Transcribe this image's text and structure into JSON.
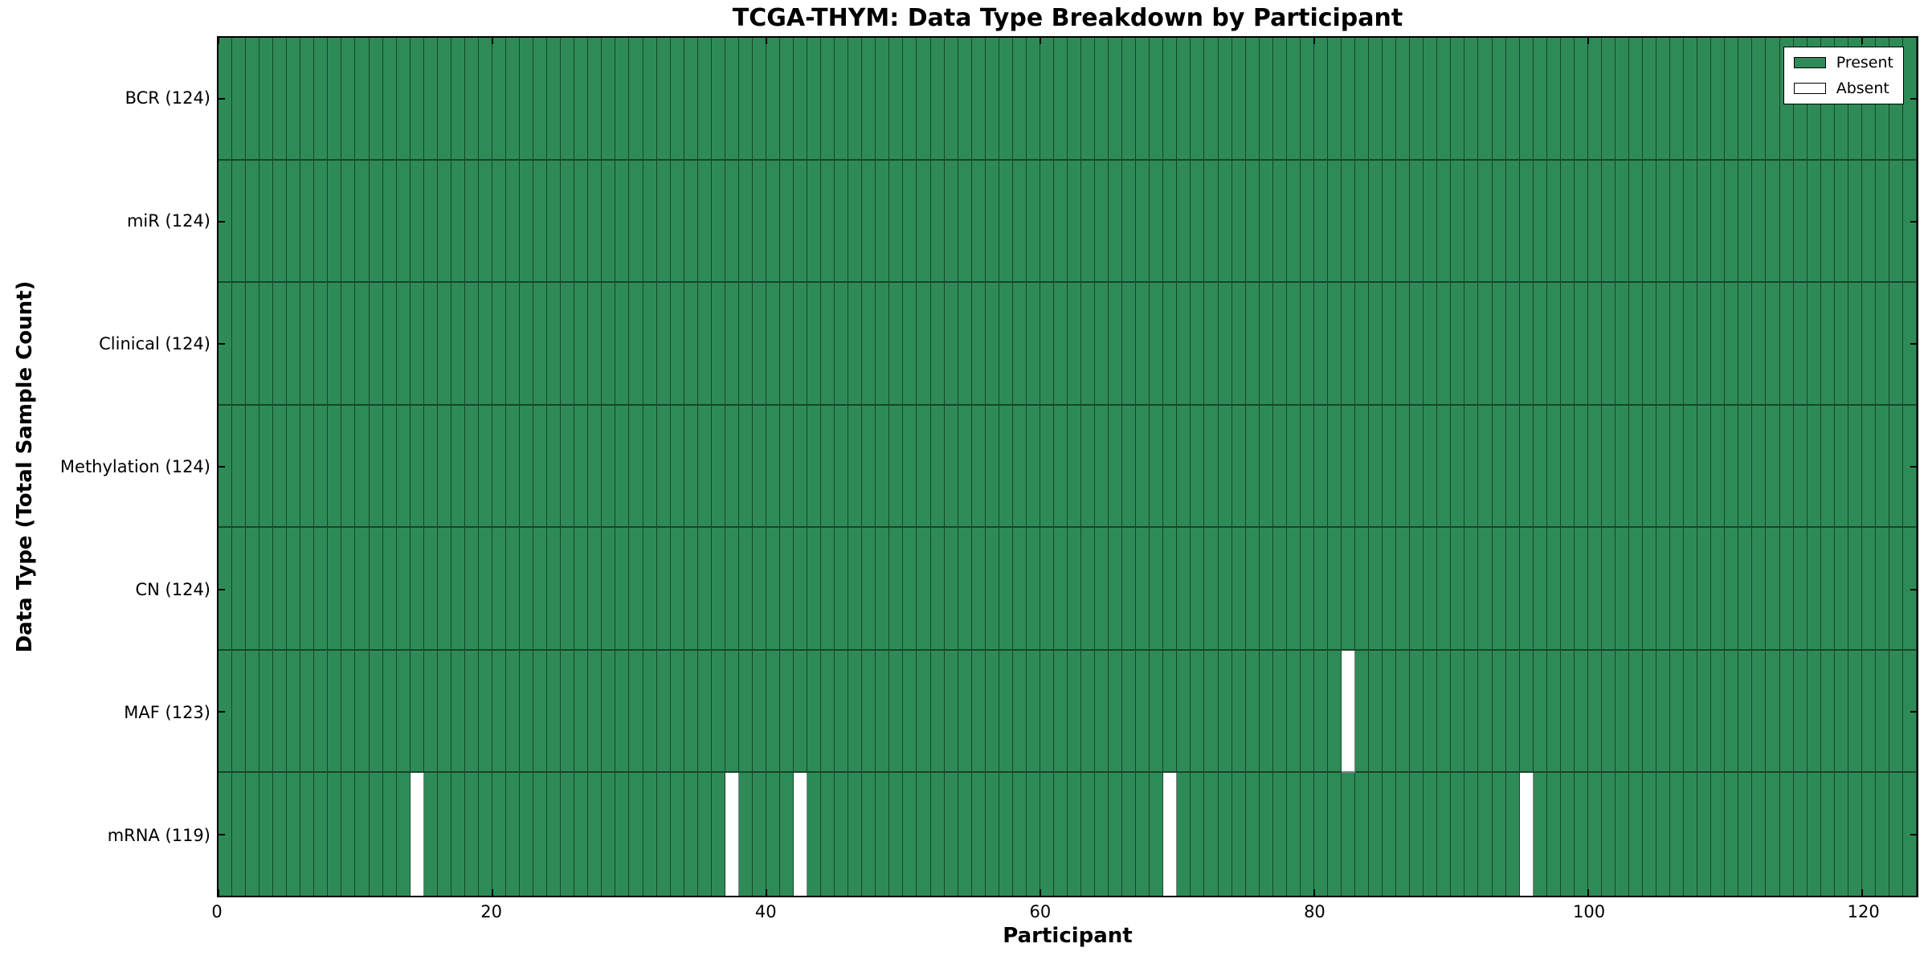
{
  "chart_data": {
    "type": "heatmap",
    "title": "TCGA-THYM: Data Type Breakdown by Participant",
    "xlabel": "Participant",
    "ylabel": "Data Type (Total Sample Count)",
    "x_ticks": [
      0,
      20,
      40,
      60,
      80,
      100,
      120
    ],
    "x_range": [
      0,
      124
    ],
    "n_participants": 124,
    "grid": "cell-borders",
    "legend": {
      "position": "upper-right",
      "entries": [
        {
          "label": "Present",
          "color": "#2e8b57"
        },
        {
          "label": "Absent",
          "color": "#ffffff"
        }
      ]
    },
    "rows": [
      {
        "label": "BCR (124)",
        "data_type": "BCR",
        "total_sample_count": 124,
        "absent_participants": []
      },
      {
        "label": "miR (124)",
        "data_type": "miR",
        "total_sample_count": 124,
        "absent_participants": []
      },
      {
        "label": "Clinical (124)",
        "data_type": "Clinical",
        "total_sample_count": 124,
        "absent_participants": []
      },
      {
        "label": "Methylation (124)",
        "data_type": "Methylation",
        "total_sample_count": 124,
        "absent_participants": []
      },
      {
        "label": "CN (124)",
        "data_type": "CN",
        "total_sample_count": 124,
        "absent_participants": []
      },
      {
        "label": "MAF (123)",
        "data_type": "MAF",
        "total_sample_count": 123,
        "absent_participants": [
          82
        ]
      },
      {
        "label": "mRNA (119)",
        "data_type": "mRNA",
        "total_sample_count": 119,
        "absent_participants": [
          14,
          37,
          42,
          69,
          95
        ]
      }
    ],
    "colors": {
      "present": "#2e8b57",
      "absent": "#ffffff",
      "cell_edge": "rgba(0,0,0,0.50)",
      "spine": "#000000",
      "text": "#000000"
    }
  }
}
